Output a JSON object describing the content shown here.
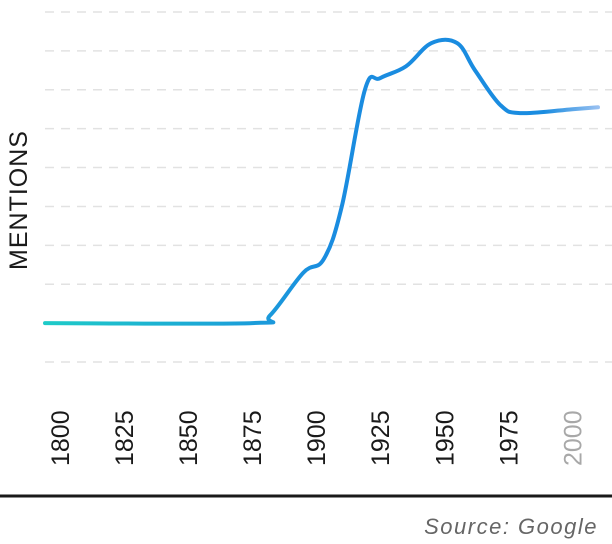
{
  "chart_data": {
    "type": "line",
    "xlabel": "",
    "ylabel": "MENTIONS",
    "xlim": [
      1800,
      2010
    ],
    "ylim": [
      -1,
      8
    ],
    "grid": true,
    "x_ticks": [
      {
        "label": "1800",
        "muted": false
      },
      {
        "label": "1825",
        "muted": false
      },
      {
        "label": "1850",
        "muted": false
      },
      {
        "label": "1875",
        "muted": false
      },
      {
        "label": "1900",
        "muted": false
      },
      {
        "label": "1925",
        "muted": false
      },
      {
        "label": "1950",
        "muted": false
      },
      {
        "label": "1975",
        "muted": false
      },
      {
        "label": "2000",
        "muted": true
      }
    ],
    "series": [
      {
        "x": [
          1800,
          1875,
          1882,
          1895,
          1903,
          1910,
          1919,
          1925,
          1935,
          1945,
          1955,
          1962,
          1972,
          1980,
          2000,
          2010
        ],
        "y": [
          0,
          0,
          0.2,
          1.3,
          1.65,
          3.0,
          6.0,
          6.3,
          6.6,
          7.2,
          7.2,
          6.5,
          5.6,
          5.4,
          5.5,
          5.55
        ]
      }
    ],
    "colors": {
      "line_start": "#1ecbc8",
      "line_mid": "#1a8ce0",
      "line_end": "#b8cdf5",
      "grid": "#e2e2e2",
      "baseline": "#1a1a1a"
    }
  },
  "footer": {
    "source_text": "Source: Google"
  }
}
